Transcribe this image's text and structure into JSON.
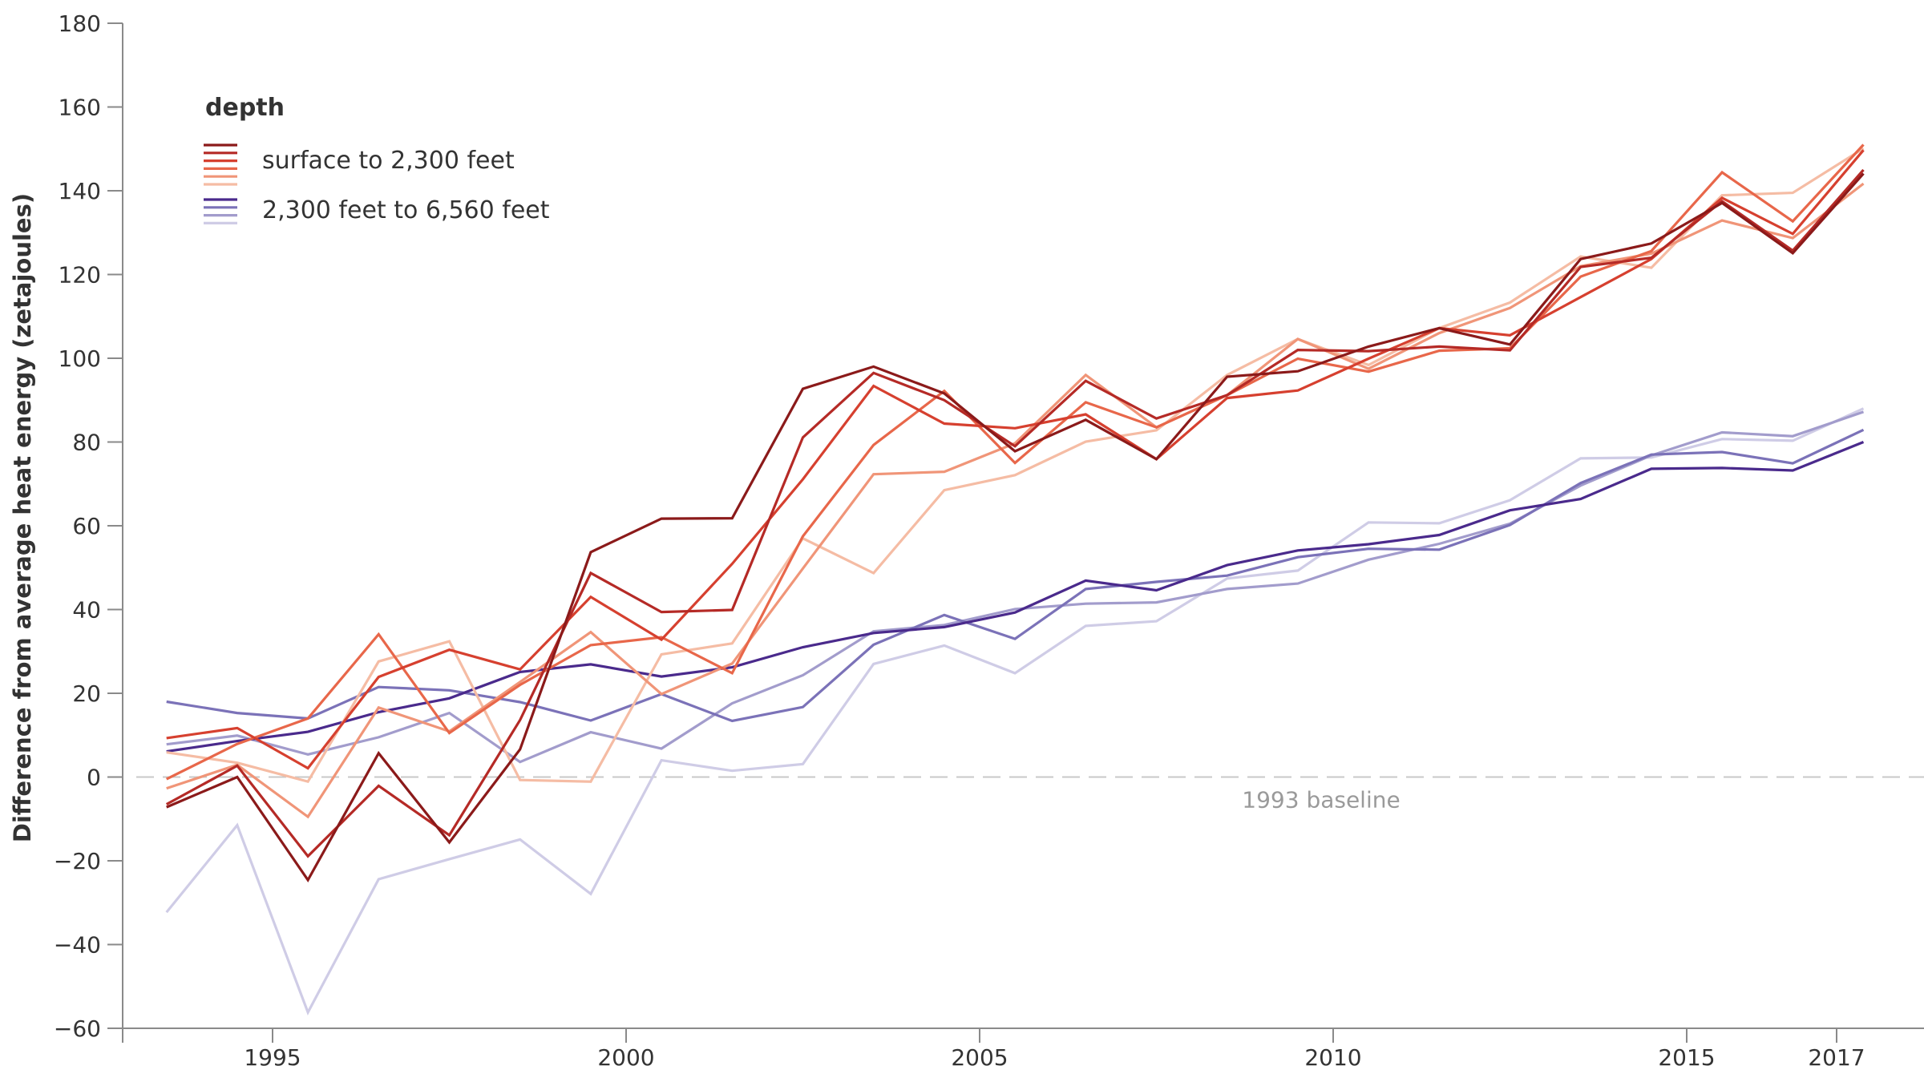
{
  "chart_data": {
    "type": "line",
    "title": "",
    "xlabel": "",
    "ylabel": "Difference from average heat energy (zetajoules)",
    "ylim": [
      -60,
      180
    ],
    "yticks": [
      180,
      160,
      140,
      120,
      100,
      80,
      60,
      40,
      20,
      0,
      -20,
      -40,
      -60
    ],
    "xticks": [
      1995,
      2000,
      2005,
      2010,
      2015,
      2017
    ],
    "xtick_labels": [
      "1995",
      "2000",
      "2005",
      "2010",
      "2015",
      "2017"
    ],
    "grid": false,
    "baseline": {
      "value": 0,
      "label": "1993 baseline",
      "style": "dashed",
      "color": "#c8c8c8",
      "label_color": "#9a9a9a"
    },
    "legend": {
      "title": "depth",
      "placement": "top-left",
      "groups": [
        {
          "label": "surface to 2,300 feet",
          "colors": [
            "#8b1a1a",
            "#b52a26",
            "#d6402f",
            "#e8674a",
            "#f09578",
            "#f5bca4"
          ]
        },
        {
          "label": "2,300 feet to 6,560 feet",
          "colors": [
            "#4a2a8c",
            "#7b72b8",
            "#a29ccc",
            "#cfcce6"
          ]
        }
      ]
    },
    "x": [
      1993,
      1994,
      1995,
      1996,
      1997,
      1998,
      1999,
      2000,
      2001,
      2002,
      2003,
      2004,
      2005,
      2006,
      2007,
      2008,
      2009,
      2010,
      2011,
      2012,
      2013,
      2014,
      2015,
      2016,
      2017
    ],
    "series": [
      {
        "name": "surface to 2,300 feet (dataset 1)",
        "group": "surface to 2,300 feet",
        "color": "#8b1a1a",
        "values": [
          -7.2,
          0,
          -24.6,
          5.7,
          -15.6,
          6.6,
          53.7,
          61.7,
          61.8,
          92.7,
          98.0,
          91.6,
          77.8,
          85.3,
          75.9,
          95.6,
          96.9,
          102.8,
          107.2,
          103.3,
          123.7,
          127.4,
          137.1,
          125.1,
          144.1
        ]
      },
      {
        "name": "surface to 2,300 feet (dataset 2)",
        "group": "surface to 2,300 feet",
        "color": "#b52a26",
        "values": [
          -6.5,
          2.7,
          -18.9,
          -2.1,
          -13.9,
          13.6,
          48.7,
          39.4,
          39.9,
          81.1,
          96.5,
          90.0,
          79.0,
          94.6,
          85.6,
          91.2,
          102.0,
          101.7,
          102.8,
          101.9,
          121.8,
          124.0,
          137.5,
          125.7,
          145.0
        ]
      },
      {
        "name": "surface to 2,300 feet (dataset 3)",
        "group": "surface to 2,300 feet",
        "color": "#d6402f",
        "values": [
          9.3,
          11.7,
          2.1,
          23.9,
          30.4,
          25.7,
          43.0,
          32.8,
          50.9,
          71.1,
          93.4,
          84.4,
          83.3,
          86.6,
          75.9,
          90.5,
          92.3,
          99.9,
          107.2,
          105.5,
          114.6,
          123.7,
          138.3,
          129.7,
          149.7
        ]
      },
      {
        "name": "surface to 2,300 feet (dataset 4)",
        "group": "surface to 2,300 feet",
        "color": "#e8674a",
        "values": [
          -0.5,
          7.9,
          14.0,
          34.1,
          10.5,
          22.0,
          31.5,
          33.4,
          24.8,
          57.5,
          79.3,
          92.2,
          75.0,
          89.5,
          83.5,
          91.2,
          99.9,
          96.8,
          101.8,
          102.4,
          119.5,
          125.6,
          144.4,
          132.7,
          151.0
        ]
      },
      {
        "name": "surface to 2,300 feet (dataset 5)",
        "group": "surface to 2,300 feet",
        "color": "#f09578",
        "values": [
          -2.7,
          2.9,
          -9.5,
          16.6,
          10.9,
          22.7,
          34.6,
          19.8,
          27.1,
          49.8,
          72.3,
          72.9,
          79.7,
          96.0,
          83.5,
          91.2,
          104.6,
          97.5,
          106.0,
          112.0,
          122.0,
          125.0,
          132.9,
          128.7,
          141.7
        ]
      },
      {
        "name": "surface to 2,300 feet (dataset 6)",
        "group": "surface to 2,300 feet",
        "color": "#f5bca4",
        "values": [
          5.9,
          3.4,
          -1.1,
          27.6,
          32.4,
          -0.7,
          -1.1,
          29.3,
          31.9,
          57.0,
          48.7,
          68.5,
          72.1,
          80.1,
          82.8,
          96.0,
          104.6,
          98.4,
          107.2,
          113.3,
          124.3,
          121.6,
          138.9,
          139.5,
          150.1
        ]
      },
      {
        "name": "2,300 feet to 6,560 feet (dataset 1)",
        "group": "2,300 feet to 6,560 feet",
        "color": "#4a2a8c",
        "values": [
          6.1,
          8.6,
          10.8,
          15.5,
          18.8,
          25.1,
          26.9,
          24.0,
          26.2,
          31.0,
          34.4,
          35.8,
          39.3,
          46.9,
          44.6,
          50.6,
          54.1,
          55.6,
          57.8,
          63.7,
          66.4,
          73.6,
          73.8,
          73.2,
          80.0
        ]
      },
      {
        "name": "2,300 feet to 6,560 feet (dataset 2)",
        "group": "2,300 feet to 6,560 feet",
        "color": "#7b72b8",
        "values": [
          18.0,
          15.3,
          14.0,
          21.5,
          20.7,
          17.9,
          13.5,
          19.8,
          13.4,
          16.7,
          31.6,
          38.7,
          33.0,
          44.9,
          46.6,
          48.1,
          52.5,
          54.5,
          54.3,
          60.2,
          70.2,
          77.0,
          77.6,
          74.9,
          82.9
        ]
      },
      {
        "name": "2,300 feet to 6,560 feet (dataset 3)",
        "group": "2,300 feet to 6,560 feet",
        "color": "#a29ccc",
        "values": [
          7.8,
          9.9,
          5.4,
          9.5,
          15.3,
          3.6,
          10.7,
          6.8,
          17.6,
          24.3,
          34.8,
          36.3,
          40.1,
          41.4,
          41.7,
          44.9,
          46.2,
          51.9,
          55.7,
          60.5,
          69.6,
          76.8,
          82.3,
          81.4,
          87.2
        ]
      },
      {
        "name": "2,300 feet to 6,560 feet (dataset 4)",
        "group": "2,300 feet to 6,560 feet",
        "color": "#cfcce6",
        "values": [
          -32.3,
          -11.5,
          -56.2,
          -24.4,
          -19.6,
          -14.9,
          -27.9,
          4.0,
          1.5,
          3.1,
          27.0,
          31.4,
          24.8,
          36.1,
          37.2,
          47.4,
          49.3,
          60.8,
          60.6,
          66.1,
          76.1,
          76.3,
          80.7,
          80.3,
          88.0
        ]
      }
    ]
  }
}
